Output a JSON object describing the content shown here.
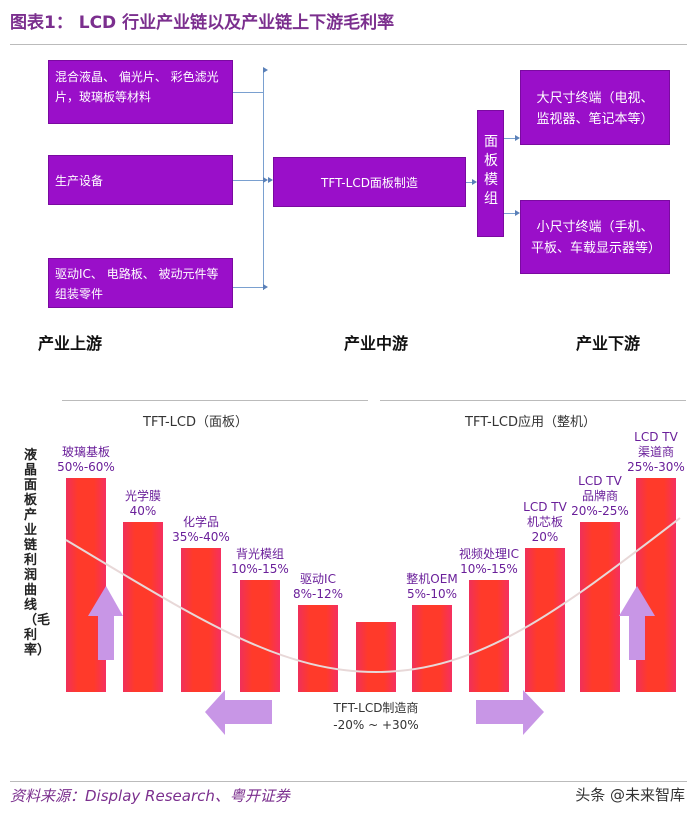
{
  "title": "图表1： LCD 行业产业链以及产业链上下游毛利率",
  "flow": {
    "upstream": [
      "混合液晶、 偏光片、 彩色滤光片，玻璃板等材料",
      "生产设备",
      "驱动IC、 电路板、 被动元件等组装零件"
    ],
    "midstream": "TFT-LCD面板制造",
    "module": "面板模组",
    "downstream": [
      "大尺寸终端（电视、监视器、笔记本等）",
      "小尺寸终端（手机、平板、车载显示器等）"
    ],
    "stages": [
      "产业上游",
      "产业中游",
      "产业下游"
    ],
    "box_color": "#9a0fc9"
  },
  "chart_data": {
    "type": "bar",
    "ylabel": "液晶面板产业链利润曲线（毛利率）",
    "sections": [
      "TFT-LCD（面板）",
      "TFT-LCD应用（整机）"
    ],
    "categories": [
      "玻璃基板",
      "光学膜",
      "化学品",
      "背光模组",
      "驱动IC",
      "TFT-LCD制造商",
      "整机OEM",
      "视频处理IC",
      "LCD TV 机芯板",
      "LCD TV 品牌商",
      "LCD TV 渠道商"
    ],
    "gross_margin": [
      "50%-60%",
      "40%",
      "35%-40%",
      "10%-15%",
      "8%-12%",
      "-20% ~ +30%",
      "5%-10%",
      "10%-15%",
      "20%",
      "20%-25%",
      "25%-30%"
    ],
    "bar_color": "#ff3a2a",
    "arrow_color": "#c896e6"
  },
  "footer": {
    "source": "资料来源：Display Research、粤开证券",
    "watermark": "头条 @未来智库"
  }
}
